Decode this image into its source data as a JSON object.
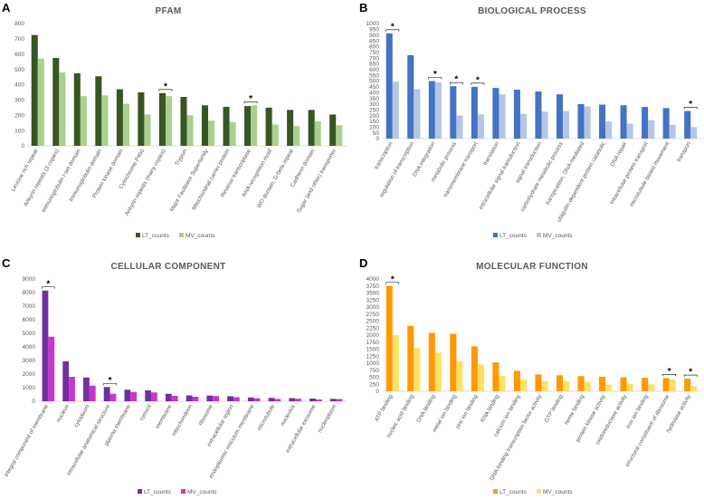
{
  "chart_data": [
    {
      "panel": "A",
      "type": "bar",
      "title": "PFAM",
      "ylim": [
        0,
        800
      ],
      "ystep": 100,
      "colors": [
        "#375623",
        "#A9D08E"
      ],
      "categories": [
        "Leucine rich repeat",
        "Ankyrin repeats (3 copies)",
        "Immunoglobulin I-set domain",
        "Immunoglobulin domain",
        "Protein kinase domain",
        "Cytochrome P450",
        "Ankyrin repeats (many copies)",
        "Trypsin",
        "Major Facilitator Superfamily",
        "Mitochondrial carrier protein",
        "Reverse transcriptase",
        "RNA recognition motif",
        "WD domain, G-beta repeat",
        "Cadherin domain",
        "Sugar (and other) transporter"
      ],
      "series": [
        {
          "name": "LT_counts",
          "values": [
            725,
            575,
            475,
            455,
            370,
            350,
            345,
            320,
            265,
            255,
            260,
            250,
            235,
            235,
            205
          ]
        },
        {
          "name": "MV_counts",
          "values": [
            570,
            480,
            325,
            330,
            275,
            205,
            325,
            200,
            165,
            155,
            265,
            140,
            130,
            160,
            135
          ]
        }
      ],
      "significant": [
        6,
        10
      ],
      "legend_position": "bottom"
    },
    {
      "panel": "B",
      "type": "bar",
      "title": "BIOLOGICAL PROCESS",
      "ylim": [
        0,
        1000
      ],
      "ystep": 50,
      "colors": [
        "#4472C4",
        "#B4C6E7"
      ],
      "categories": [
        "transcription",
        "regulation of transcription",
        "DNA integration",
        "metabolic process",
        "transmembrane transport",
        "translation",
        "intracellular signal transduction",
        "signal transduction",
        "carbohydrate metabolic process",
        "transposition, DNA-mediated",
        "ubiquitin-dependent protein catabolic",
        "DNA repair",
        "intracellular protein transport",
        "microtubule-based movement",
        "transport"
      ],
      "series": [
        {
          "name": "LT_counts",
          "values": [
            915,
            725,
            500,
            455,
            450,
            440,
            425,
            410,
            385,
            300,
            295,
            290,
            275,
            265,
            240
          ]
        },
        {
          "name": "MV_counts",
          "values": [
            495,
            430,
            490,
            200,
            210,
            385,
            215,
            235,
            240,
            280,
            150,
            130,
            160,
            120,
            100
          ]
        }
      ],
      "significant": [
        0,
        2,
        3,
        4,
        14
      ],
      "legend_position": "bottom"
    },
    {
      "panel": "C",
      "type": "bar",
      "title": "CELLULAR COMPONENT",
      "ylim": [
        0,
        9000
      ],
      "ystep": 1000,
      "colors": [
        "#7030A0",
        "#CC33CC"
      ],
      "categories": [
        "integral component of membrane",
        "nucleus",
        "cytoplasm",
        "intracellular anatomical structure",
        "plasma membrane",
        "cytosol",
        "membrane",
        "mitochondrion",
        "ribosome",
        "extracellular region",
        "endoplasmic reticulum membrane",
        "microtubule",
        "nucleolus",
        "extracellular exosome",
        "nucleoplasm"
      ],
      "series": [
        {
          "name": "LT_counts",
          "values": [
            8150,
            2950,
            1750,
            1050,
            850,
            800,
            550,
            430,
            420,
            370,
            280,
            250,
            230,
            200,
            180
          ]
        },
        {
          "name": "MV_counts",
          "values": [
            4750,
            1800,
            1150,
            550,
            680,
            650,
            400,
            330,
            380,
            300,
            220,
            170,
            190,
            130,
            160
          ]
        }
      ],
      "significant": [
        0,
        3
      ],
      "legend_position": "bottom"
    },
    {
      "panel": "D",
      "type": "bar",
      "title": "MOLECULAR FUNCTION",
      "ylim": [
        0,
        4000
      ],
      "ystep": 250,
      "colors": [
        "#FF9900",
        "#FFE066"
      ],
      "categories": [
        "ATP binding",
        "nucleic acid binding",
        "DNA binding",
        "metal ion binding",
        "zinc ion binding",
        "RNA binding",
        "calcium ion binding",
        "DNA-binding transcription factor activity",
        "GTP binding",
        "heme binding",
        "protein kinase activity",
        "oxidoreductase activity",
        "iron ion binding",
        "structural constituent of ribosome",
        "hydrolase activity"
      ],
      "series": [
        {
          "name": "LT_counts",
          "values": [
            3750,
            2330,
            2080,
            2050,
            1600,
            1030,
            730,
            600,
            570,
            540,
            520,
            500,
            480,
            470,
            450
          ]
        },
        {
          "name": "MV_counts",
          "values": [
            2000,
            1550,
            1380,
            1080,
            960,
            550,
            420,
            360,
            360,
            330,
            240,
            270,
            250,
            420,
            180
          ]
        }
      ],
      "significant": [
        0,
        13,
        14
      ],
      "legend_position": "bottom"
    }
  ],
  "significance_marker": "*",
  "legend_labels": [
    "LT_counts",
    "MV_counts"
  ]
}
